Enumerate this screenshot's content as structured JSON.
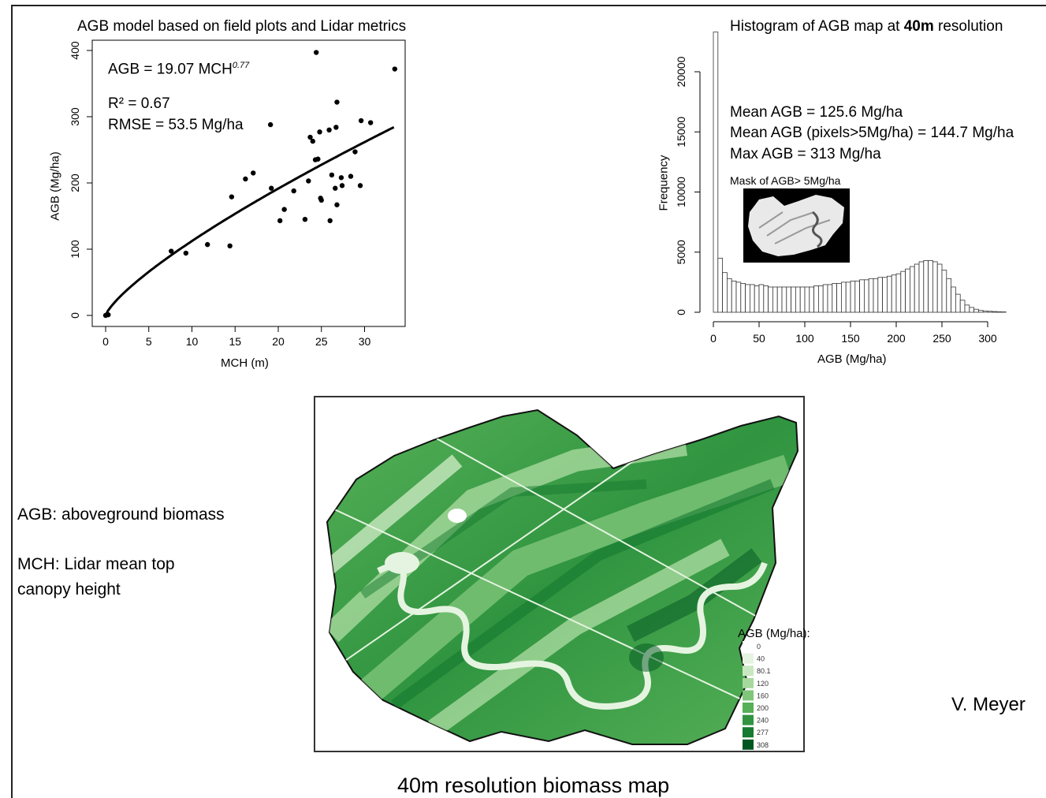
{
  "scatter_panel": {
    "title": "AGB model based on field plots and Lidar metrics",
    "equation_base": "AGB = 19.07 MCH",
    "equation_exp": "0.77",
    "r2": "R² = 0.67",
    "rmse": "RMSE = 53.5 Mg/ha"
  },
  "hist_panel": {
    "title_pre": "Histogram of AGB map at ",
    "title_bold": "40m",
    "title_post": " resolution",
    "stats": [
      "Mean AGB =  125.6 Mg/ha",
      "Mean AGB (pixels>5Mg/ha) = 144.7 Mg/ha",
      "Max AGB = 313 Mg/ha"
    ],
    "mask_label": "Mask of AGB> 5Mg/ha"
  },
  "map_panel": {
    "legend_title": "AGB (Mg/ha):",
    "legend": [
      {
        "label": "0",
        "color": "#ffffff"
      },
      {
        "label": "40",
        "color": "#e5f4e0"
      },
      {
        "label": "80.1",
        "color": "#c9e8c1"
      },
      {
        "label": "120",
        "color": "#a7d99e"
      },
      {
        "label": "160",
        "color": "#7fc67a"
      },
      {
        "label": "200",
        "color": "#55b057"
      },
      {
        "label": "240",
        "color": "#309440"
      },
      {
        "label": "277",
        "color": "#167a30"
      },
      {
        "label": "308",
        "color": "#00561f"
      }
    ],
    "caption": "40m resolution biomass map"
  },
  "notes": {
    "agb": "AGB: aboveground biomass",
    "mch": "MCH:  Lidar mean top canopy height"
  },
  "credit": "V. Meyer",
  "chart_data": [
    {
      "type": "scatter",
      "xlabel": "MCH (m)",
      "ylabel": "AGB (Mg/ha)",
      "xlim": [
        0,
        35
      ],
      "ylim": [
        0,
        410
      ],
      "xticks": [
        0,
        5,
        10,
        15,
        20,
        25,
        30
      ],
      "yticks": [
        0,
        100,
        200,
        300,
        400
      ],
      "fit": {
        "a": 19.07,
        "b": 0.77
      },
      "points": [
        [
          0,
          0
        ],
        [
          0.3,
          1
        ],
        [
          7.6,
          97
        ],
        [
          9.3,
          94
        ],
        [
          11.8,
          107
        ],
        [
          14.4,
          105
        ],
        [
          14.6,
          179
        ],
        [
          16.2,
          206
        ],
        [
          17.1,
          215
        ],
        [
          19.1,
          288
        ],
        [
          19.2,
          192
        ],
        [
          20.2,
          143
        ],
        [
          20.7,
          160
        ],
        [
          21.8,
          188
        ],
        [
          23.1,
          145
        ],
        [
          23.5,
          203
        ],
        [
          23.7,
          269
        ],
        [
          24.0,
          263
        ],
        [
          24.3,
          235
        ],
        [
          24.4,
          397
        ],
        [
          24.6,
          236
        ],
        [
          24.8,
          277
        ],
        [
          24.9,
          177
        ],
        [
          25.0,
          174
        ],
        [
          25.9,
          280
        ],
        [
          26.0,
          143
        ],
        [
          26.2,
          212
        ],
        [
          26.6,
          192
        ],
        [
          26.7,
          284
        ],
        [
          26.8,
          322
        ],
        [
          26.8,
          167
        ],
        [
          27.3,
          208
        ],
        [
          27.4,
          196
        ],
        [
          28.4,
          210
        ],
        [
          28.9,
          247
        ],
        [
          29.5,
          196
        ],
        [
          29.6,
          294
        ],
        [
          30.7,
          291
        ],
        [
          33.5,
          372
        ]
      ]
    },
    {
      "type": "bar",
      "xlabel": "AGB (Mg/ha)",
      "ylabel": "Frequency",
      "xlim": [
        0,
        320
      ],
      "ylim": [
        0,
        23000
      ],
      "xticks": [
        0,
        50,
        100,
        150,
        200,
        250,
        300
      ],
      "yticks": [
        0,
        5000,
        10000,
        15000,
        20000
      ],
      "bin_width": 5,
      "values": [
        23300,
        4500,
        3300,
        2800,
        2600,
        2500,
        2400,
        2300,
        2300,
        2200,
        2300,
        2200,
        2100,
        2100,
        2100,
        2100,
        2100,
        2100,
        2100,
        2100,
        2100,
        2100,
        2200,
        2200,
        2300,
        2300,
        2400,
        2400,
        2500,
        2500,
        2600,
        2600,
        2700,
        2700,
        2800,
        2800,
        2900,
        2900,
        3000,
        3100,
        3200,
        3400,
        3600,
        3800,
        4000,
        4200,
        4300,
        4300,
        4200,
        4000,
        3500,
        2800,
        2100,
        1500,
        1000,
        600,
        400,
        250,
        150,
        100,
        80,
        60,
        40,
        30
      ]
    }
  ]
}
